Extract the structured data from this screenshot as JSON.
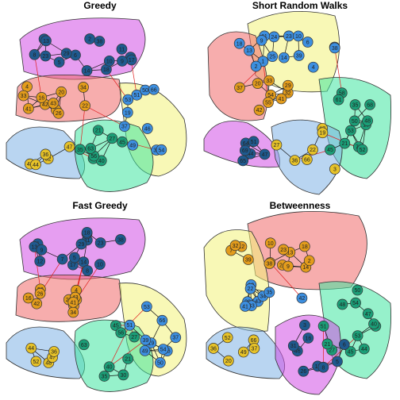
{
  "colors": {
    "group_blue": "#3d8fe0",
    "group_orange": "#e39c1c",
    "group_teal": "#1b9e77",
    "group_navy": "#1f5a8f",
    "group_yellow": "#e6c229",
    "hull_magenta": "#d14fe6",
    "hull_red": "#f06a6a",
    "hull_yellow": "#f2f27a",
    "hull_blue": "#7fb3e6",
    "hull_green": "#3fe6a0",
    "edge_black": "#111111",
    "edge_red": "#e02020"
  },
  "panels": [
    {
      "title": "Greedy",
      "node_labels": [
        "14",
        "12",
        "7",
        "6",
        "17",
        "11",
        "23",
        "13",
        "2",
        "8",
        "5",
        "9",
        "38",
        "18",
        "10",
        "29",
        "22",
        "20",
        "4",
        "32",
        "42",
        "33",
        "43",
        "34",
        "41",
        "16",
        "26",
        "19",
        "39",
        "46",
        "51",
        "54",
        "50",
        "49",
        "53",
        "37",
        "66",
        "48",
        "52",
        "47",
        "36",
        "44",
        "27",
        "35",
        "30",
        "40",
        "45",
        "21",
        "56",
        "63"
      ]
    },
    {
      "title": "Short Random Walks",
      "node_labels": [
        "14",
        "13",
        "24",
        "17",
        "11",
        "6",
        "4",
        "18",
        "23",
        "1",
        "2",
        "10",
        "25",
        "38",
        "9",
        "39",
        "37",
        "54",
        "20",
        "32",
        "29",
        "33",
        "55",
        "41",
        "42",
        "16",
        "50",
        "68",
        "58",
        "70",
        "53",
        "52",
        "48",
        "35",
        "61",
        "21",
        "45",
        "64",
        "65",
        "47",
        "44",
        "69",
        "51",
        "36",
        "66",
        "67",
        "19",
        "22",
        "3",
        "27"
      ]
    },
    {
      "title": "Fast Greedy",
      "node_labels": [
        "14",
        "12",
        "7",
        "6",
        "17",
        "11",
        "23",
        "13",
        "2",
        "8",
        "5",
        "9",
        "38",
        "18",
        "10",
        "29",
        "22",
        "20",
        "4",
        "32",
        "42",
        "33",
        "43",
        "34",
        "41",
        "16",
        "26",
        "19",
        "39",
        "46",
        "51",
        "54",
        "50",
        "49",
        "53",
        "37",
        "66",
        "48",
        "52",
        "47",
        "36",
        "44",
        "27",
        "35",
        "30",
        "40",
        "45",
        "21",
        "56",
        "63"
      ]
    },
    {
      "title": "Betweenness",
      "node_labels": [
        "24",
        "17",
        "13",
        "14",
        "18",
        "10",
        "12",
        "7",
        "23",
        "2",
        "38",
        "9",
        "39",
        "32",
        "19",
        "29",
        "22",
        "43",
        "42",
        "33",
        "34",
        "41",
        "35",
        "27",
        "30",
        "40",
        "45",
        "51",
        "54",
        "53",
        "47",
        "44",
        "21",
        "48",
        "50",
        "66",
        "36",
        "52",
        "20",
        "49",
        "37",
        "11",
        "6",
        "8",
        "5",
        "3",
        "16",
        "26",
        "46",
        "31"
      ]
    }
  ]
}
